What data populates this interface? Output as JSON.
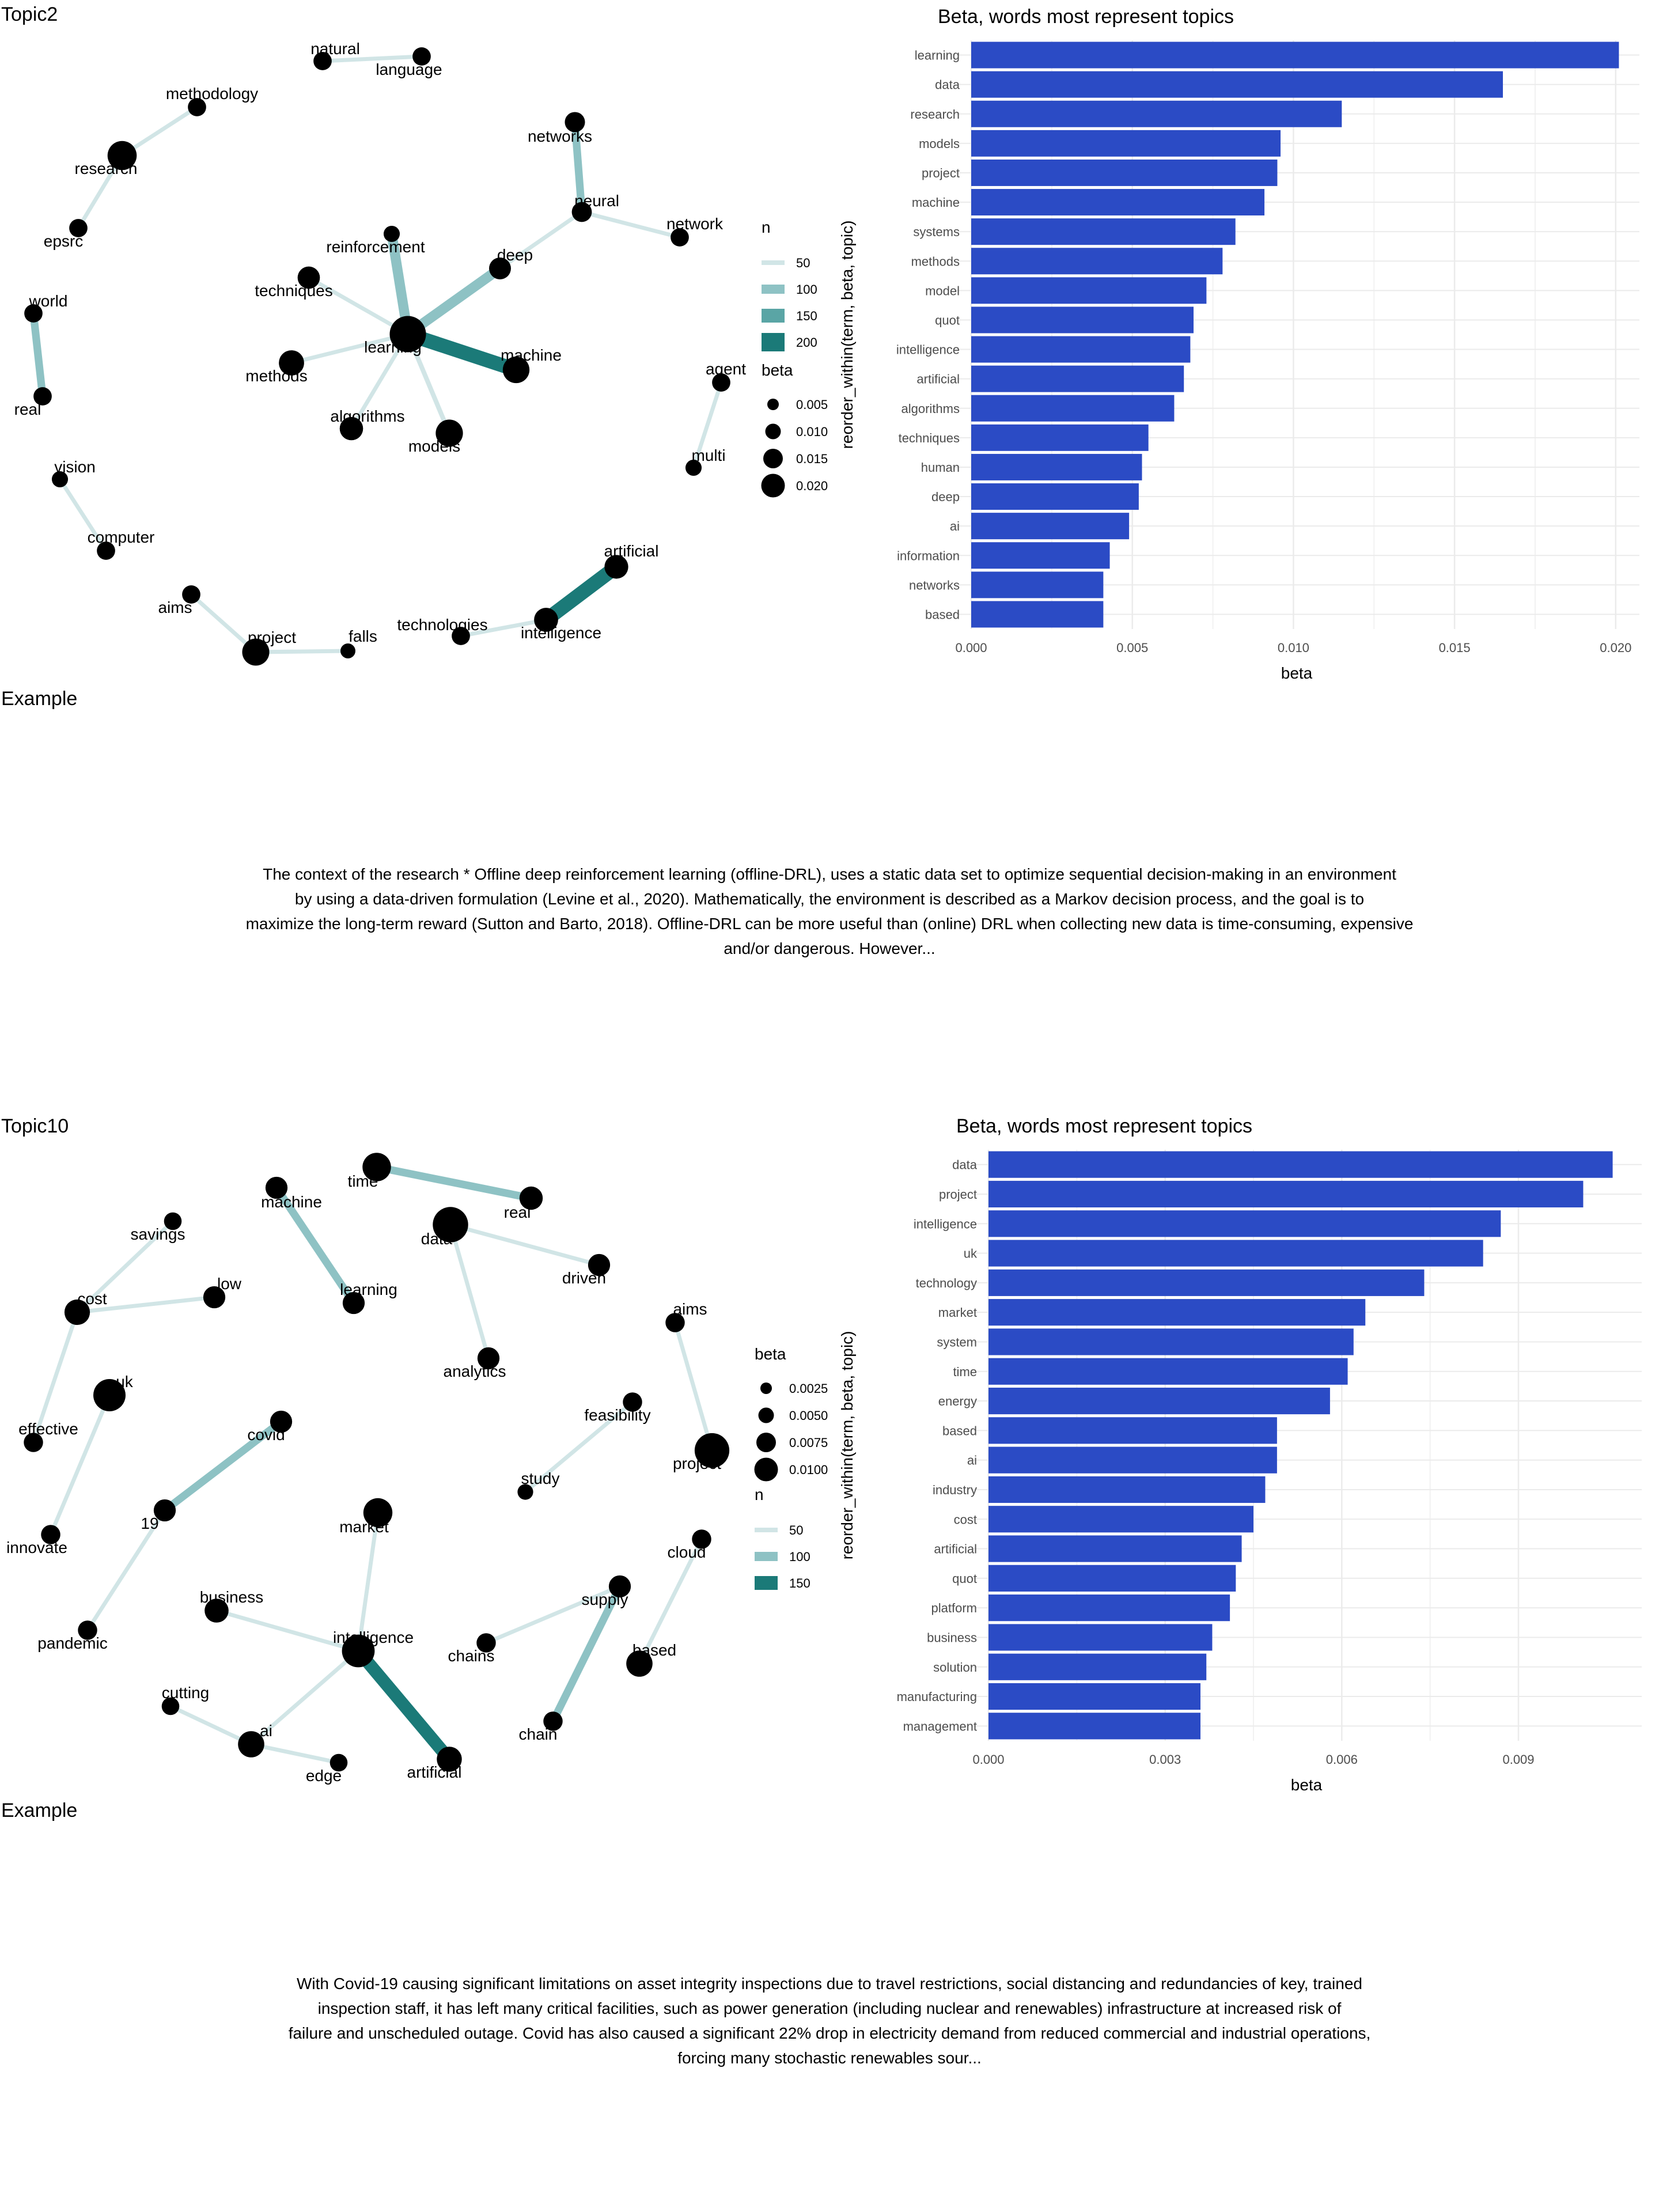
{
  "panels": [
    {
      "topic_label": "Topic2",
      "example_label": "Example",
      "paragraph_lines": [
        "The context of the research * Offline deep reinforcement learning (offline-DRL), uses a static data set to optimize sequential decision-making in an environment",
        "by using a data-driven formulation (Levine et al., 2020). Mathematically, the environment is described as a Markov decision process, and the goal is to",
        "maximize the long-term reward (Sutton and Barto, 2018). Offline-DRL can be more useful than (online) DRL when collecting new data is time-consuming, expensive",
        "and/or dangerous. However..."
      ],
      "network_legend": {
        "first": "n",
        "n_title": "n",
        "n_labels": [
          "50",
          "100",
          "150",
          "200"
        ],
        "beta_title": "beta",
        "beta_labels": [
          "0.005",
          "0.010",
          "0.015",
          "0.020"
        ]
      }
    },
    {
      "topic_label": "Topic10",
      "example_label": "Example",
      "paragraph_lines": [
        "With Covid-19 causing significant limitations on asset integrity inspections due to travel restrictions, social distancing and redundancies of key, trained",
        "inspection staff, it has left many critical facilities, such as power generation (including nuclear and renewables) infrastructure at increased risk of",
        "failure and unscheduled outage. Covid has also caused a significant 22% drop in electricity demand from reduced commercial and industrial operations,",
        "forcing many stochastic renewables sour..."
      ],
      "network_legend": {
        "first": "beta",
        "n_title": "n",
        "n_labels": [
          "50",
          "100",
          "150"
        ],
        "beta_title": "beta",
        "beta_labels": [
          "0.0025",
          "0.0050",
          "0.0075",
          "0.0100"
        ]
      }
    }
  ],
  "colors": {
    "bar": "#2b4bc5",
    "edge_light": "#d1e5e6",
    "edge_mid": "#8ec2c4",
    "edge_dark": "#1b7a78",
    "node": "#000000",
    "grid": "#ebebeb"
  },
  "chart_data": [
    {
      "type": "bar",
      "orientation": "horizontal",
      "title": "Beta, words most represent topics",
      "xlabel": "beta",
      "ylabel": "reorder_within(term, beta, topic)",
      "xlim": [
        0,
        0.0202
      ],
      "xticks": [
        0.0,
        0.005,
        0.01,
        0.015,
        0.02
      ],
      "xtick_labels": [
        "0.000",
        "0.005",
        "0.010",
        "0.015",
        "0.020"
      ],
      "grid": true,
      "categories": [
        "learning",
        "data",
        "research",
        "models",
        "project",
        "machine",
        "systems",
        "methods",
        "model",
        "quot",
        "intelligence",
        "artificial",
        "algorithms",
        "techniques",
        "human",
        "deep",
        "ai",
        "information",
        "networks",
        "based"
      ],
      "values": [
        0.0201,
        0.0165,
        0.0115,
        0.0096,
        0.0095,
        0.0091,
        0.0082,
        0.0078,
        0.0073,
        0.0069,
        0.0068,
        0.0066,
        0.0063,
        0.0055,
        0.0053,
        0.0052,
        0.0049,
        0.0043,
        0.0041,
        0.0041
      ]
    },
    {
      "type": "bar",
      "orientation": "horizontal",
      "title": "Beta, words most represent topics",
      "xlabel": "beta",
      "ylabel": "reorder_within(term, beta, topic)",
      "xlim": [
        0,
        0.0108
      ],
      "xticks": [
        0.0,
        0.003,
        0.006,
        0.009
      ],
      "xtick_labels": [
        "0.000",
        "0.003",
        "0.006",
        "0.009"
      ],
      "grid": true,
      "categories": [
        "data",
        "project",
        "intelligence",
        "uk",
        "technology",
        "market",
        "system",
        "time",
        "energy",
        "based",
        "ai",
        "industry",
        "cost",
        "artificial",
        "quot",
        "platform",
        "business",
        "solution",
        "manufacturing",
        "management"
      ],
      "values": [
        0.0106,
        0.0101,
        0.0087,
        0.0084,
        0.0074,
        0.0064,
        0.0062,
        0.0061,
        0.0058,
        0.0049,
        0.0049,
        0.0047,
        0.0045,
        0.0043,
        0.0042,
        0.0041,
        0.0038,
        0.0037,
        0.0036,
        0.0036
      ]
    },
    {
      "type": "network",
      "nodes": [
        {
          "label": "natural",
          "beta": 0.003
        },
        {
          "label": "language",
          "beta": 0.003
        },
        {
          "label": "methodology",
          "beta": 0.003
        },
        {
          "label": "research",
          "beta": 0.0115
        },
        {
          "label": "epsrc",
          "beta": 0.003
        },
        {
          "label": "networks",
          "beta": 0.0041
        },
        {
          "label": "neural",
          "beta": 0.004
        },
        {
          "label": "network",
          "beta": 0.003
        },
        {
          "label": "reinforcement",
          "beta": 0.002
        },
        {
          "label": "deep",
          "beta": 0.0052
        },
        {
          "label": "techniques",
          "beta": 0.0055
        },
        {
          "label": "learning",
          "beta": 0.0201
        },
        {
          "label": "machine",
          "beta": 0.0091
        },
        {
          "label": "methods",
          "beta": 0.0078
        },
        {
          "label": "algorithms",
          "beta": 0.0063
        },
        {
          "label": "models",
          "beta": 0.0096
        },
        {
          "label": "world",
          "beta": 0.003
        },
        {
          "label": "real",
          "beta": 0.003
        },
        {
          "label": "agent",
          "beta": 0.003
        },
        {
          "label": "multi",
          "beta": 0.002
        },
        {
          "label": "vision",
          "beta": 0.002
        },
        {
          "label": "computer",
          "beta": 0.003
        },
        {
          "label": "aims",
          "beta": 0.003
        },
        {
          "label": "project",
          "beta": 0.0095
        },
        {
          "label": "falls",
          "beta": 0.0015
        },
        {
          "label": "artificial",
          "beta": 0.0066
        },
        {
          "label": "technologies",
          "beta": 0.003
        },
        {
          "label": "intelligence",
          "beta": 0.0068
        }
      ],
      "edges": [
        {
          "from": "natural",
          "to": "language",
          "n": 50
        },
        {
          "from": "methodology",
          "to": "research",
          "n": 50
        },
        {
          "from": "research",
          "to": "epsrc",
          "n": 50
        },
        {
          "from": "networks",
          "to": "neural",
          "n": 110
        },
        {
          "from": "neural",
          "to": "network",
          "n": 50
        },
        {
          "from": "neural",
          "to": "deep",
          "n": 50
        },
        {
          "from": "reinforcement",
          "to": "learning",
          "n": 150
        },
        {
          "from": "deep",
          "to": "learning",
          "n": 150
        },
        {
          "from": "techniques",
          "to": "learning",
          "n": 50
        },
        {
          "from": "learning",
          "to": "machine",
          "n": 220
        },
        {
          "from": "methods",
          "to": "learning",
          "n": 50
        },
        {
          "from": "algorithms",
          "to": "learning",
          "n": 50
        },
        {
          "from": "learning",
          "to": "models",
          "n": 60
        },
        {
          "from": "world",
          "to": "real",
          "n": 110
        },
        {
          "from": "agent",
          "to": "multi",
          "n": 50
        },
        {
          "from": "vision",
          "to": "computer",
          "n": 50
        },
        {
          "from": "aims",
          "to": "project",
          "n": 50
        },
        {
          "from": "project",
          "to": "falls",
          "n": 50
        },
        {
          "from": "artificial",
          "to": "intelligence",
          "n": 220
        },
        {
          "from": "technologies",
          "to": "intelligence",
          "n": 50
        }
      ]
    },
    {
      "type": "network",
      "nodes": [
        {
          "label": "time",
          "beta": 0.0061
        },
        {
          "label": "real",
          "beta": 0.0035
        },
        {
          "label": "machine",
          "beta": 0.003
        },
        {
          "label": "data",
          "beta": 0.0106
        },
        {
          "label": "savings",
          "beta": 0.0015
        },
        {
          "label": "driven",
          "beta": 0.003
        },
        {
          "label": "low",
          "beta": 0.003
        },
        {
          "label": "cost",
          "beta": 0.0045
        },
        {
          "label": "learning",
          "beta": 0.003
        },
        {
          "label": "aims",
          "beta": 0.002
        },
        {
          "label": "analytics",
          "beta": 0.003
        },
        {
          "label": "uk",
          "beta": 0.0084
        },
        {
          "label": "feasibility",
          "beta": 0.002
        },
        {
          "label": "effective",
          "beta": 0.002
        },
        {
          "label": "covid",
          "beta": 0.003
        },
        {
          "label": "project",
          "beta": 0.0101
        },
        {
          "label": "study",
          "beta": 0.001
        },
        {
          "label": "19",
          "beta": 0.003
        },
        {
          "label": "market",
          "beta": 0.0064
        },
        {
          "label": "innovate",
          "beta": 0.002
        },
        {
          "label": "cloud",
          "beta": 0.002
        },
        {
          "label": "supply",
          "beta": 0.003
        },
        {
          "label": "business",
          "beta": 0.0038
        },
        {
          "label": "intelligence",
          "beta": 0.0087
        },
        {
          "label": "pandemic",
          "beta": 0.002
        },
        {
          "label": "chains",
          "beta": 0.002
        },
        {
          "label": "based",
          "beta": 0.0049
        },
        {
          "label": "cutting",
          "beta": 0.0015
        },
        {
          "label": "ai",
          "beta": 0.0049
        },
        {
          "label": "chain",
          "beta": 0.002
        },
        {
          "label": "edge",
          "beta": 0.0015
        },
        {
          "label": "artificial",
          "beta": 0.0043
        }
      ],
      "edges": [
        {
          "from": "time",
          "to": "real",
          "n": 100
        },
        {
          "from": "machine",
          "to": "learning",
          "n": 100
        },
        {
          "from": "data",
          "to": "driven",
          "n": 50
        },
        {
          "from": "data",
          "to": "analytics",
          "n": 50
        },
        {
          "from": "savings",
          "to": "cost",
          "n": 50
        },
        {
          "from": "low",
          "to": "cost",
          "n": 50
        },
        {
          "from": "cost",
          "to": "effective",
          "n": 50
        },
        {
          "from": "aims",
          "to": "project",
          "n": 50
        },
        {
          "from": "uk",
          "to": "innovate",
          "n": 50
        },
        {
          "from": "feasibility",
          "to": "study",
          "n": 50
        },
        {
          "from": "covid",
          "to": "19",
          "n": 100
        },
        {
          "from": "19",
          "to": "pandemic",
          "n": 50
        },
        {
          "from": "market",
          "to": "intelligence",
          "n": 50
        },
        {
          "from": "business",
          "to": "intelligence",
          "n": 50
        },
        {
          "from": "intelligence",
          "to": "artificial",
          "n": 170
        },
        {
          "from": "intelligence",
          "to": "ai",
          "n": 50
        },
        {
          "from": "cutting",
          "to": "ai",
          "n": 50
        },
        {
          "from": "ai",
          "to": "edge",
          "n": 50
        },
        {
          "from": "supply",
          "to": "chains",
          "n": 50
        },
        {
          "from": "supply",
          "to": "chain",
          "n": 100
        },
        {
          "from": "cloud",
          "to": "based",
          "n": 50
        }
      ]
    }
  ]
}
